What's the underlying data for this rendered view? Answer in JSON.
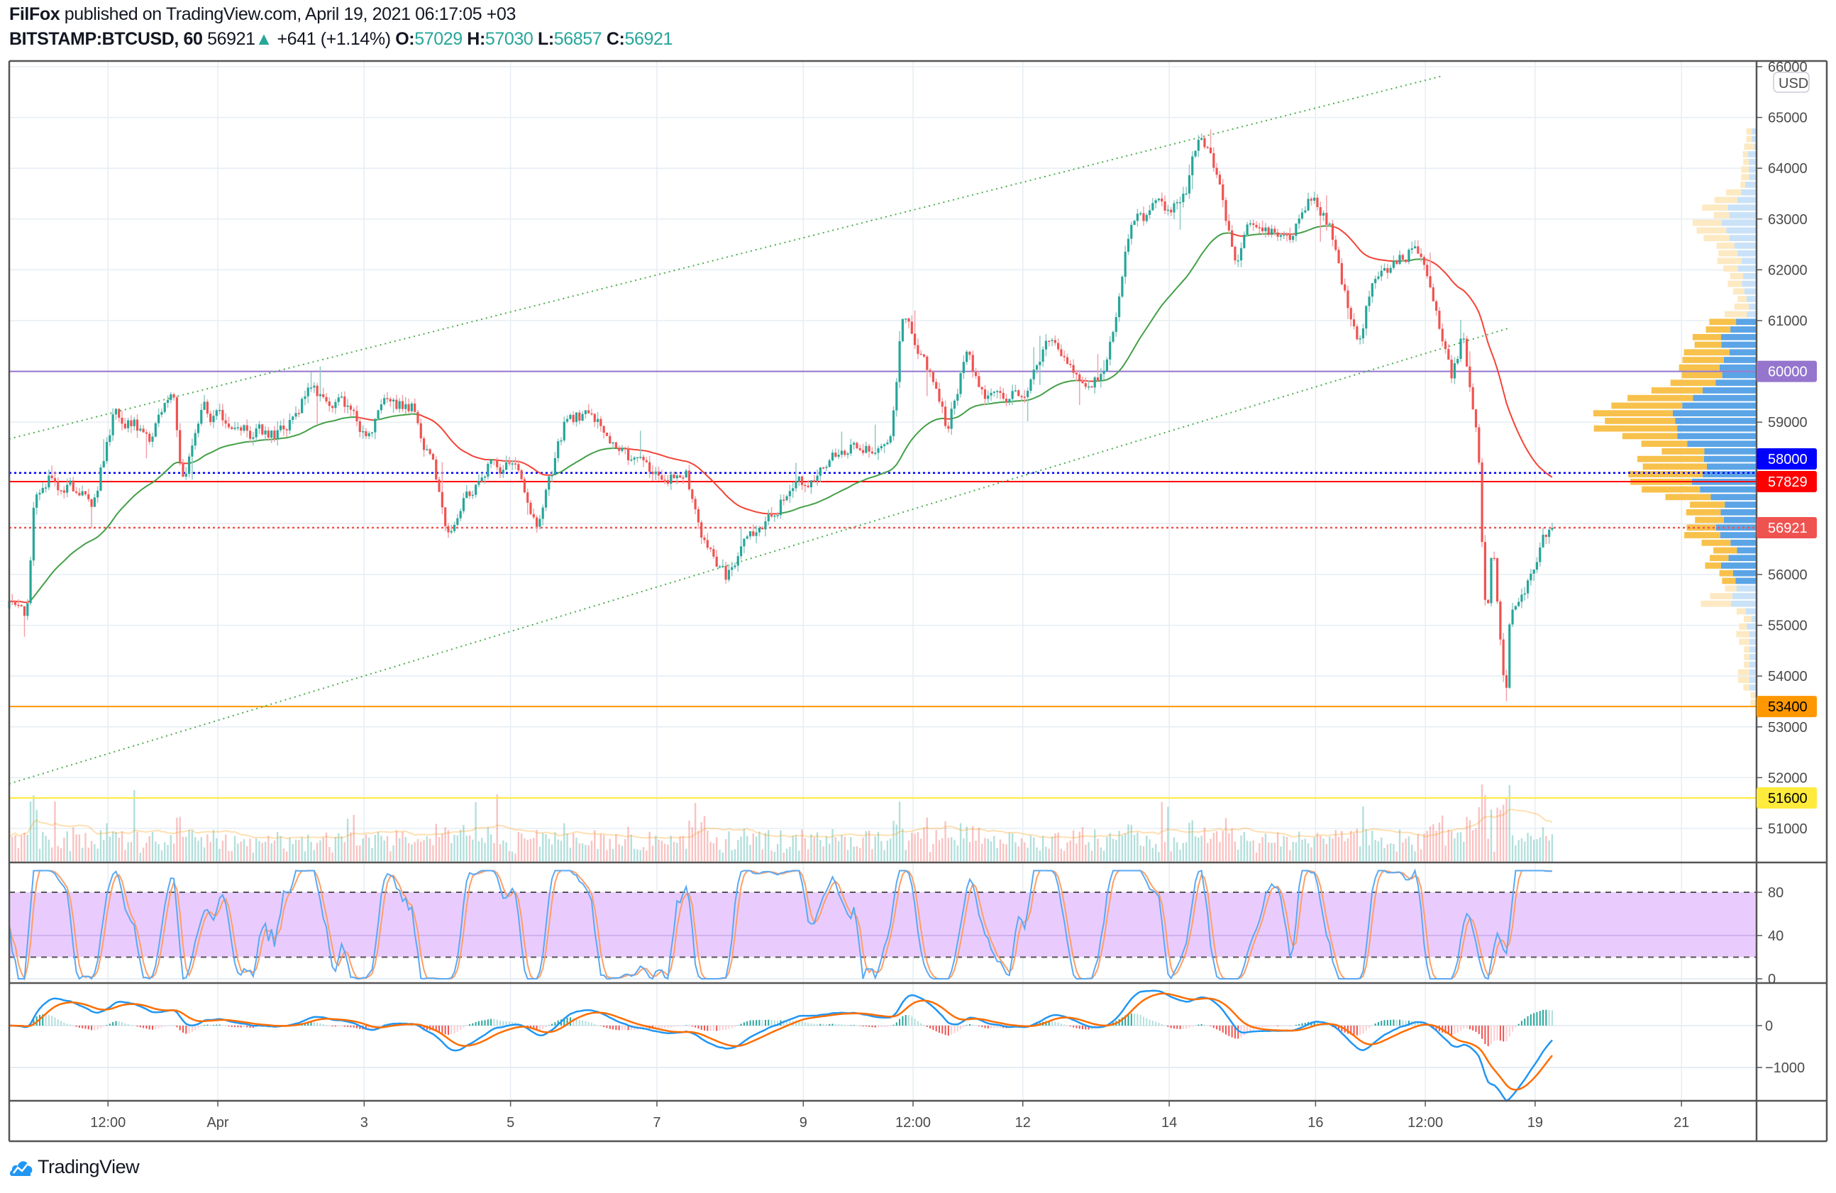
{
  "header": {
    "author": "FilFox",
    "published": " published on TradingView.com, April 19, 2021 06:17:05 +03",
    "symbol": "BITSTAMP:BTCUSD, 60",
    "last": "56921",
    "change_arrow": "▲",
    "change": "+641 (+1.14%)",
    "o_label": "O:",
    "o": "57029",
    "h_label": "H:",
    "h": "57030",
    "l_label": "L:",
    "l": "56857",
    "c_label": "C:",
    "c": "56921"
  },
  "logo": {
    "text": "TradingView"
  },
  "colors": {
    "up": "#26a69a",
    "down": "#ef5350",
    "grid": "#e6edf3",
    "ema_up": "#43a047",
    "ema_down": "#f44336",
    "macd": "#2196f3",
    "signal": "#ff6d00",
    "k": "#5aa9f5",
    "d": "#ff9e66",
    "rsi_band": "#e9ccfd"
  },
  "chart_data": {
    "type": "candlestick",
    "title": "BITSTAMP:BTCUSD, 60",
    "timeframe_hours": 1,
    "time_unit": "days since Apr 1 2021 00:00",
    "currency": "USD",
    "ylim": [
      50600,
      66200
    ],
    "xlim": [
      -2.9,
      22.6
    ],
    "y_ticks": [
      51000,
      52000,
      53000,
      54000,
      55000,
      56000,
      57000,
      58000,
      59000,
      60000,
      61000,
      62000,
      63000,
      64000,
      65000,
      66000
    ],
    "x_ticks": [
      {
        "t": -1.5,
        "label": "12:00"
      },
      {
        "t": 0,
        "label": "Apr"
      },
      {
        "t": 2,
        "label": "3"
      },
      {
        "t": 4,
        "label": "5"
      },
      {
        "t": 6,
        "label": "7"
      },
      {
        "t": 8,
        "label": "9"
      },
      {
        "t": 9.5,
        "label": "12:00"
      },
      {
        "t": 11,
        "label": "12"
      },
      {
        "t": 13,
        "label": "14"
      },
      {
        "t": 15,
        "label": "16"
      },
      {
        "t": 16.5,
        "label": "12:00"
      },
      {
        "t": 18,
        "label": "19"
      },
      {
        "t": 20,
        "label": "21"
      }
    ],
    "price_path": [
      [
        -2.85,
        55330
      ],
      [
        -2.62,
        55150
      ],
      [
        -2.5,
        57630
      ],
      [
        -2.34,
        57980
      ],
      [
        -1.7,
        57400
      ],
      [
        -1.41,
        59250
      ],
      [
        -0.9,
        58670
      ],
      [
        -0.61,
        59710
      ],
      [
        -0.5,
        57870
      ],
      [
        -0.18,
        59250
      ],
      [
        0.3,
        58790
      ],
      [
        0.86,
        58790
      ],
      [
        1.26,
        59710
      ],
      [
        1.82,
        59250
      ],
      [
        1.98,
        58670
      ],
      [
        2.3,
        59400
      ],
      [
        2.7,
        59250
      ],
      [
        2.94,
        58100
      ],
      [
        3.15,
        56720
      ],
      [
        3.42,
        57520
      ],
      [
        3.74,
        58210
      ],
      [
        4.14,
        58100
      ],
      [
        4.38,
        56950
      ],
      [
        4.54,
        57870
      ],
      [
        4.78,
        59130
      ],
      [
        5.18,
        59130
      ],
      [
        5.42,
        58560
      ],
      [
        5.74,
        58210
      ],
      [
        6.14,
        57870
      ],
      [
        6.38,
        58210
      ],
      [
        6.62,
        56720
      ],
      [
        6.94,
        55910
      ],
      [
        7.26,
        56720
      ],
      [
        7.58,
        57170
      ],
      [
        7.74,
        57640
      ],
      [
        8.22,
        57980
      ],
      [
        8.54,
        58560
      ],
      [
        9.02,
        58330
      ],
      [
        9.18,
        58330
      ],
      [
        9.26,
        59250
      ],
      [
        9.34,
        60860
      ],
      [
        9.66,
        60400
      ],
      [
        9.98,
        58790
      ],
      [
        10.22,
        60400
      ],
      [
        10.46,
        59590
      ],
      [
        10.78,
        59480
      ],
      [
        11.1,
        59820
      ],
      [
        11.42,
        60630
      ],
      [
        11.74,
        59820
      ],
      [
        12.06,
        59940
      ],
      [
        12.22,
        60630
      ],
      [
        12.46,
        62700
      ],
      [
        12.78,
        63170
      ],
      [
        13.02,
        63050
      ],
      [
        13.26,
        63740
      ],
      [
        13.38,
        64550
      ],
      [
        13.58,
        64440
      ],
      [
        13.74,
        63170
      ],
      [
        13.9,
        62240
      ],
      [
        14.14,
        62940
      ],
      [
        14.46,
        62700
      ],
      [
        14.62,
        62470
      ],
      [
        14.94,
        63400
      ],
      [
        15.18,
        62940
      ],
      [
        15.34,
        61780
      ],
      [
        15.58,
        60630
      ],
      [
        15.74,
        61670
      ],
      [
        16.06,
        62010
      ],
      [
        16.27,
        62360
      ],
      [
        16.46,
        62130
      ],
      [
        16.62,
        61090
      ],
      [
        16.86,
        59940
      ],
      [
        17.02,
        60750
      ],
      [
        17.1,
        59710
      ],
      [
        17.22,
        58790
      ],
      [
        17.28,
        56480
      ],
      [
        17.34,
        55100
      ],
      [
        17.42,
        56720
      ],
      [
        17.5,
        54870
      ],
      [
        17.6,
        53370
      ],
      [
        17.66,
        55100
      ],
      [
        17.82,
        55560
      ],
      [
        17.98,
        56250
      ],
      [
        18.11,
        56720
      ],
      [
        18.22,
        56921
      ]
    ],
    "levels": [
      {
        "price": 60000,
        "label": "60000",
        "color": "#9575cd",
        "style": "solid",
        "text_color": "#ffffff"
      },
      {
        "price": 58000,
        "label": "58000",
        "color": "#0000ff",
        "style": "dotted",
        "text_color": "#ffffff"
      },
      {
        "price": 57829,
        "label": "57829",
        "color": "#ff0000",
        "style": "solid",
        "text_color": "#ffffff"
      },
      {
        "price": 56921,
        "label": "56921",
        "color": "#ef5350",
        "style": "dotted",
        "text_color": "#ffffff"
      },
      {
        "price": 53400,
        "label": "53400",
        "color": "#ff9800",
        "style": "solid",
        "text_color": "#000000"
      },
      {
        "price": 51600,
        "label": "51600",
        "color": "#ffeb3b",
        "style": "solid",
        "text_color": "#000000"
      }
    ],
    "channel": [
      {
        "from": [
          -2.85,
          58670
        ],
        "to": [
          16.74,
          65820
        ]
      },
      {
        "from": [
          -2.85,
          51880
        ],
        "to": [
          17.66,
          60860
        ]
      }
    ],
    "value_area": [
      55700,
      61000
    ],
    "stoch_rsi": {
      "ticks": [
        80,
        40,
        0
      ],
      "bands": [
        20,
        80
      ],
      "ylim": [
        0,
        100
      ]
    },
    "macd": {
      "ticks": [
        {
          "v": 0,
          "label": "0"
        },
        {
          "v": -1000,
          "label": "−1000"
        }
      ]
    }
  }
}
